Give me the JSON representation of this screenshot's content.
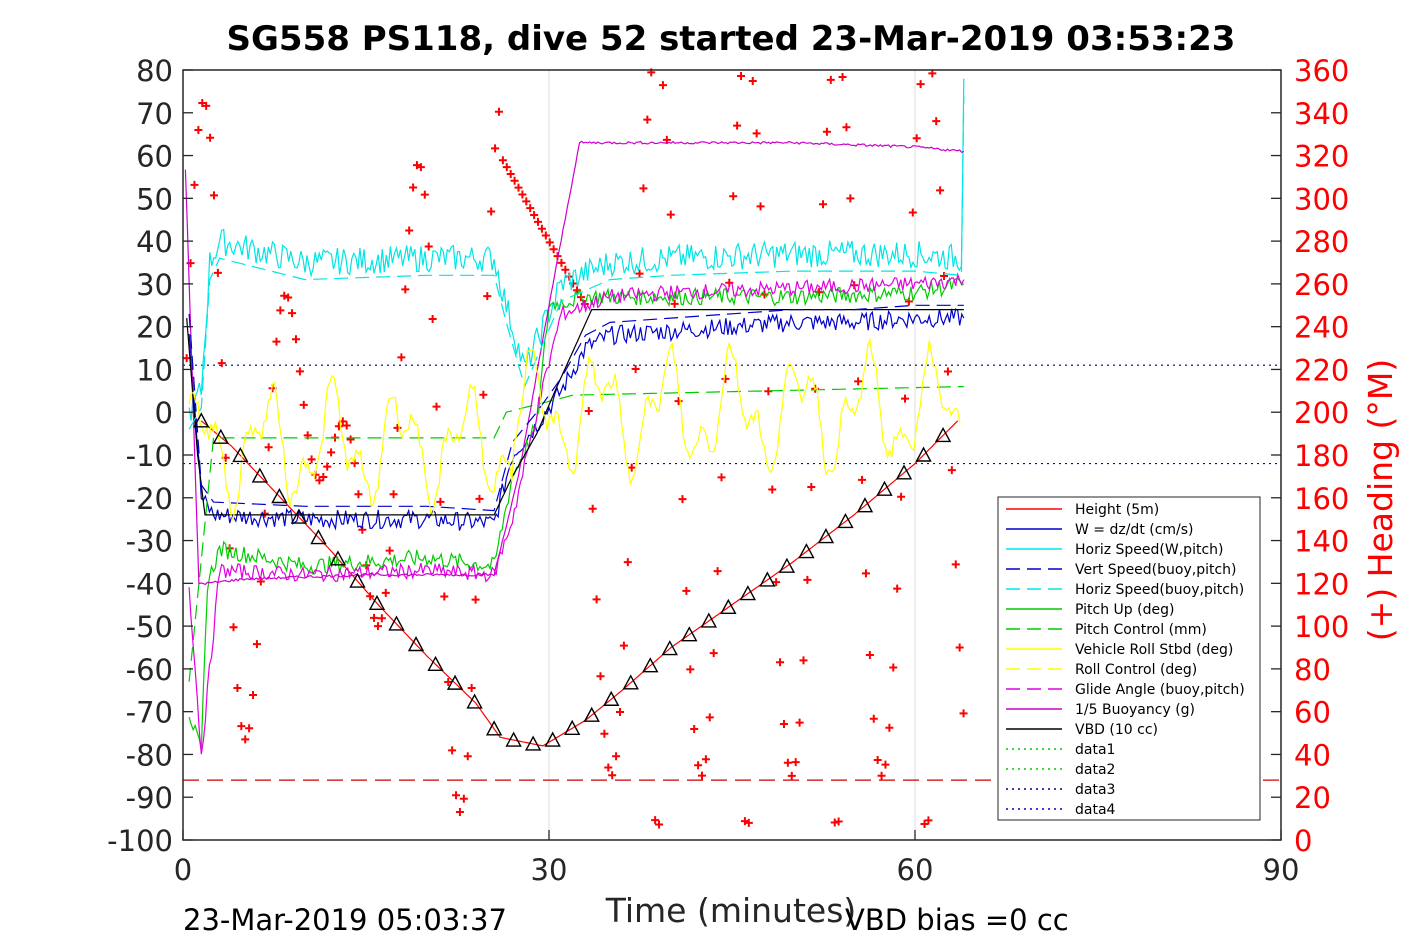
{
  "chart_data": {
    "type": "line",
    "title": "SG558 PS118, dive 52 started 23-Mar-2019 03:53:23",
    "xlabel": "Time (minutes)",
    "ylabel_right": "(+) Heading (°M)",
    "footer_left": "23-Mar-2019 05:03:37",
    "footer_right": "VBD bias =0 cc",
    "xlim": [
      0,
      90
    ],
    "ylim": [
      -100,
      80
    ],
    "ylim_right": [
      0,
      360
    ],
    "x_ticks": [
      0,
      30,
      60,
      90
    ],
    "y_ticks": [
      80,
      70,
      60,
      50,
      40,
      30,
      20,
      10,
      0,
      -10,
      -20,
      -30,
      -40,
      -50,
      -60,
      -70,
      -80,
      -90,
      -100
    ],
    "y_ticks_right": [
      360,
      340,
      320,
      300,
      280,
      260,
      240,
      220,
      200,
      180,
      160,
      140,
      120,
      100,
      80,
      60,
      40,
      20,
      0
    ],
    "grid": "vertical-major",
    "legend_placement": "bottom-right",
    "colors": {
      "height": "#ff0000",
      "w": "#0000cc",
      "horiz": "#00e5e5",
      "pitch": "#00cc00",
      "roll": "#ffff00",
      "glide": "#e000e0",
      "buoy": "#cc00cc",
      "vbd": "#000000",
      "heading": "#ff0000"
    },
    "legend": [
      {
        "label": "Height (5m)",
        "color": "#ff0000",
        "dash": "solid"
      },
      {
        "label": "W = dz/dt (cm/s)",
        "color": "#0000cc",
        "dash": "solid"
      },
      {
        "label": "Horiz Speed(W,pitch)",
        "color": "#00e5e5",
        "dash": "solid"
      },
      {
        "label": "Vert Speed(buoy,pitch)",
        "color": "#0000cc",
        "dash": "dashed"
      },
      {
        "label": "Horiz Speed(buoy,pitch)",
        "color": "#00e5e5",
        "dash": "dashed"
      },
      {
        "label": "Pitch Up (deg)",
        "color": "#00cc00",
        "dash": "solid"
      },
      {
        "label": "Pitch Control (mm)",
        "color": "#00cc00",
        "dash": "dashed"
      },
      {
        "label": "Vehicle Roll Stbd (deg)",
        "color": "#ffff00",
        "dash": "solid"
      },
      {
        "label": "Roll Control (deg)",
        "color": "#ffff00",
        "dash": "dashed"
      },
      {
        "label": "Glide Angle (buoy,pitch)",
        "color": "#e000e0",
        "dash": "dashed"
      },
      {
        "label": "1/5 Buoyancy (g)",
        "color": "#cc00cc",
        "dash": "solid"
      },
      {
        "label": "VBD (10 cc)",
        "color": "#000000",
        "dash": "solid"
      },
      {
        "label": "data1",
        "color": "#00cc00",
        "dash": "dotted"
      },
      {
        "label": "data2",
        "color": "#00cc00",
        "dash": "dotted"
      },
      {
        "label": "data3",
        "color": "#000080",
        "dash": "dotted"
      },
      {
        "label": "data4",
        "color": "#0000cc",
        "dash": "dotted"
      }
    ],
    "series": [
      {
        "key": "height",
        "x": [
          1.5,
          4.0,
          8.0,
          12.0,
          16.0,
          20.0,
          24.0,
          26.0,
          29.5,
          33.0,
          36.0,
          40.0,
          45.0,
          50.0,
          55.0,
          60.0,
          63.5
        ],
        "y": [
          -2,
          -8,
          -20,
          -32,
          -45,
          -57,
          -68,
          -76,
          -78,
          -72,
          -65,
          -55,
          -45,
          -35,
          -24,
          -12,
          -2
        ]
      },
      {
        "key": "w",
        "x": [
          0.5,
          1.5,
          2.5,
          10,
          20,
          25.5,
          27,
          29,
          31,
          33,
          35,
          40,
          45,
          50,
          55,
          60,
          64
        ],
        "y": [
          20,
          -20,
          -24,
          -25,
          -25,
          -26,
          -10,
          -3,
          5,
          15,
          18,
          19,
          20,
          21,
          21,
          22,
          22
        ]
      },
      {
        "key": "horiz",
        "x": [
          0.5,
          1.5,
          2.2,
          3.0,
          10,
          20,
          25.5,
          26.5,
          28,
          29.5,
          31,
          35,
          40,
          50,
          60,
          63.8,
          64.0
        ],
        "y": [
          0,
          5,
          35,
          40,
          35,
          36,
          36,
          25,
          10,
          20,
          30,
          35,
          36,
          37,
          37,
          36,
          78
        ]
      },
      {
        "key": "pitch",
        "x": [
          0.5,
          1.5,
          2.0,
          3.0,
          10,
          20,
          25.5,
          27,
          29,
          30,
          33,
          40,
          50,
          60,
          64
        ],
        "y": [
          -70,
          -80,
          -40,
          -32,
          -36,
          -34,
          -36,
          -15,
          -3,
          25,
          27,
          27,
          27,
          28,
          30
        ]
      },
      {
        "key": "pitch_control",
        "x": [
          0.5,
          2.5,
          25.5,
          26.5,
          32,
          64
        ],
        "y": [
          -63,
          -6,
          -6,
          0,
          4,
          6
        ]
      },
      {
        "key": "glide",
        "x": [
          0.5,
          1.5,
          3,
          10,
          20,
          25.5,
          27,
          29,
          31,
          35,
          40,
          50,
          60,
          64
        ],
        "y": [
          -40,
          -80,
          -37,
          -38,
          -37,
          -38,
          -25,
          0,
          23,
          27,
          28,
          29,
          30,
          31
        ]
      },
      {
        "key": "buoy",
        "x": [
          0.2,
          1.3,
          2.0,
          5,
          15,
          25.5,
          27.5,
          30,
          32.5,
          40,
          50,
          60,
          64
        ],
        "y": [
          57,
          -40,
          -40,
          -39,
          -38,
          -38,
          -15,
          25,
          63,
          63,
          63,
          62,
          61
        ]
      },
      {
        "key": "vbd",
        "x": [
          0.3,
          1.2,
          1.8,
          10,
          20,
          25.5,
          27,
          29,
          30.5,
          33.5,
          40,
          50,
          60,
          64
        ],
        "y": [
          22,
          -10,
          -24,
          -24,
          -24,
          -24,
          -15,
          -5,
          5,
          24,
          24,
          24,
          24,
          24
        ]
      }
    ],
    "reference_lines": [
      {
        "name": "data3",
        "y": 11,
        "color": "#000080"
      },
      {
        "name": "data4",
        "y": -12,
        "color": "#0000cc"
      },
      {
        "name": "heading-dash",
        "y": -86,
        "color": "#cc0000"
      }
    ]
  }
}
